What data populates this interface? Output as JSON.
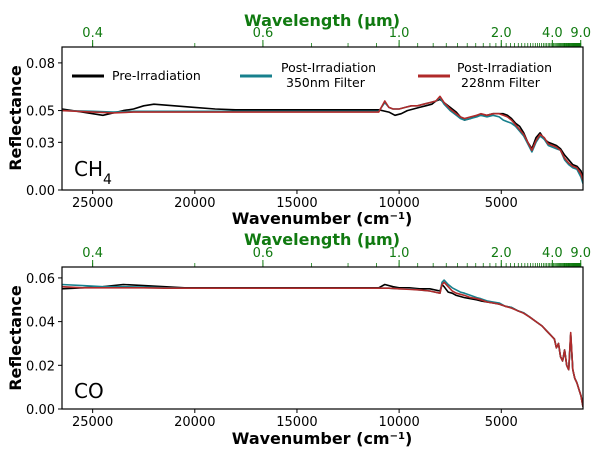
{
  "colors": {
    "pre": "#000000",
    "f350": "#17808d",
    "f228": "#b02a2a",
    "top_axis": "#107a10",
    "frame": "#000000"
  },
  "legend": {
    "pre": "Pre-Irradiation",
    "f350_l1": "Post-Irradiation",
    "f350_l2": "350nm Filter",
    "f228_l1": "Post-Irradiation",
    "f228_l2": "228nm Filter"
  },
  "chart_data": [
    {
      "type": "line",
      "panel_label": "CH",
      "panel_label_sub": "4",
      "xlabel": "Wavenumber (cm",
      "xlabel_sup": "−1",
      "xlabel_end": ")",
      "ylabel": "Reflectance",
      "top_xlabel": "Wavelength (μm)",
      "xlim": [
        26500,
        1000
      ],
      "ylim": [
        0.0,
        0.09
      ],
      "x_ticks": [
        25000,
        20000,
        15000,
        10000,
        5000
      ],
      "x_tick_labels": [
        "25000",
        "20000",
        "15000",
        "10000",
        "5000"
      ],
      "y_ticks": [
        0.0,
        0.03,
        0.05,
        0.08
      ],
      "y_tick_labels": [
        "0.00",
        "0.03",
        "0.05",
        "0.08"
      ],
      "top_ticks_um": [
        0.4,
        0.6,
        1.0,
        2.0,
        4.0,
        9.0
      ],
      "top_tick_labels": [
        "0.4",
        "0.6",
        "1.0",
        "2.0",
        "4.0",
        "9.0"
      ],
      "grid": false,
      "legend_position": "top",
      "series": [
        {
          "key": "pre",
          "name": "Pre-Irradiation",
          "x": [
            26500,
            25500,
            24500,
            23500,
            23000,
            22500,
            22000,
            21000,
            20000,
            19000,
            18000,
            17000,
            16000,
            15000,
            14000,
            13000,
            12000,
            11000,
            10500,
            10200,
            9900,
            9600,
            9300,
            9000,
            8700,
            8400,
            8200,
            8000,
            7800,
            7500,
            7200,
            7000,
            6800,
            6500,
            6200,
            6000,
            5700,
            5400,
            5100,
            4900,
            4700,
            4500,
            4300,
            4100,
            3900,
            3700,
            3500,
            3300,
            3100,
            2900,
            2700,
            2500,
            2300,
            2100,
            1900,
            1700,
            1500,
            1300,
            1100,
            1000
          ],
          "y": [
            0.051,
            0.049,
            0.047,
            0.05,
            0.051,
            0.053,
            0.054,
            0.053,
            0.052,
            0.051,
            0.0505,
            0.0505,
            0.0505,
            0.0505,
            0.0505,
            0.0505,
            0.0505,
            0.0505,
            0.049,
            0.047,
            0.048,
            0.05,
            0.051,
            0.052,
            0.053,
            0.054,
            0.056,
            0.057,
            0.055,
            0.052,
            0.049,
            0.046,
            0.044,
            0.045,
            0.047,
            0.047,
            0.047,
            0.048,
            0.048,
            0.048,
            0.047,
            0.045,
            0.042,
            0.04,
            0.036,
            0.03,
            0.026,
            0.033,
            0.036,
            0.032,
            0.03,
            0.029,
            0.028,
            0.026,
            0.022,
            0.019,
            0.016,
            0.015,
            0.012,
            0.008
          ]
        },
        {
          "key": "f350",
          "name": "Post-Irradiation 350nm Filter",
          "x": [
            26500,
            25000,
            24000,
            23000,
            22000,
            21000,
            20000,
            19000,
            18000,
            17000,
            16000,
            15000,
            14000,
            13000,
            12000,
            11000,
            10700,
            10500,
            10300,
            10000,
            9700,
            9400,
            9100,
            8800,
            8500,
            8200,
            8000,
            7800,
            7500,
            7200,
            7000,
            6800,
            6500,
            6200,
            6000,
            5700,
            5400,
            5100,
            4900,
            4700,
            4500,
            4300,
            4100,
            3900,
            3700,
            3500,
            3300,
            3100,
            2900,
            2700,
            2500,
            2300,
            2100,
            1900,
            1700,
            1500,
            1300,
            1100,
            1000
          ],
          "y": [
            0.05,
            0.0495,
            0.049,
            0.0495,
            0.0495,
            0.0495,
            0.0495,
            0.0495,
            0.0495,
            0.0495,
            0.0495,
            0.0495,
            0.0495,
            0.0495,
            0.0495,
            0.0495,
            0.055,
            0.052,
            0.051,
            0.051,
            0.052,
            0.053,
            0.053,
            0.054,
            0.055,
            0.056,
            0.058,
            0.054,
            0.05,
            0.047,
            0.045,
            0.044,
            0.045,
            0.046,
            0.047,
            0.046,
            0.047,
            0.046,
            0.044,
            0.043,
            0.042,
            0.04,
            0.037,
            0.034,
            0.029,
            0.024,
            0.03,
            0.034,
            0.032,
            0.028,
            0.027,
            0.026,
            0.025,
            0.019,
            0.016,
            0.014,
            0.013,
            0.008,
            0.004
          ]
        },
        {
          "key": "f228",
          "name": "Post-Irradiation 228nm Filter",
          "x": [
            26500,
            25000,
            24000,
            23000,
            22000,
            21000,
            20000,
            19000,
            18000,
            17000,
            16000,
            15000,
            14000,
            13000,
            12000,
            11000,
            10700,
            10500,
            10300,
            10000,
            9700,
            9400,
            9100,
            8800,
            8500,
            8200,
            8000,
            7800,
            7500,
            7200,
            7000,
            6800,
            6500,
            6200,
            6000,
            5700,
            5400,
            5100,
            4900,
            4700,
            4500,
            4300,
            4100,
            3900,
            3700,
            3500,
            3300,
            3100,
            2900,
            2700,
            2500,
            2300,
            2100,
            1900,
            1700,
            1500,
            1300,
            1100,
            1000
          ],
          "y": [
            0.05,
            0.049,
            0.0485,
            0.049,
            0.049,
            0.049,
            0.049,
            0.049,
            0.049,
            0.049,
            0.049,
            0.049,
            0.049,
            0.049,
            0.049,
            0.049,
            0.056,
            0.052,
            0.051,
            0.051,
            0.052,
            0.053,
            0.053,
            0.054,
            0.055,
            0.056,
            0.059,
            0.055,
            0.051,
            0.048,
            0.046,
            0.045,
            0.046,
            0.047,
            0.048,
            0.047,
            0.048,
            0.048,
            0.047,
            0.046,
            0.044,
            0.041,
            0.038,
            0.035,
            0.03,
            0.025,
            0.031,
            0.035,
            0.033,
            0.029,
            0.028,
            0.027,
            0.025,
            0.02,
            0.017,
            0.015,
            0.014,
            0.01,
            0.006
          ]
        }
      ]
    },
    {
      "type": "line",
      "panel_label": "CO",
      "panel_label_sub": "",
      "xlabel": "Wavenumber (cm",
      "xlabel_sup": "−1",
      "xlabel_end": ")",
      "ylabel": "Reflectance",
      "top_xlabel": "Wavelength (μm)",
      "xlim": [
        26500,
        1000
      ],
      "ylim": [
        0.0,
        0.065
      ],
      "x_ticks": [
        25000,
        20000,
        15000,
        10000,
        5000
      ],
      "x_tick_labels": [
        "25000",
        "20000",
        "15000",
        "10000",
        "5000"
      ],
      "y_ticks": [
        0.0,
        0.02,
        0.04,
        0.06
      ],
      "y_tick_labels": [
        "0.00",
        "0.02",
        "0.04",
        "0.06"
      ],
      "top_ticks_um": [
        0.4,
        0.6,
        1.0,
        2.0,
        4.0,
        9.0
      ],
      "top_tick_labels": [
        "0.4",
        "0.6",
        "1.0",
        "2.0",
        "4.0",
        "9.0"
      ],
      "grid": false,
      "series": [
        {
          "key": "pre",
          "name": "Pre-Irradiation",
          "x": [
            26500,
            25500,
            24500,
            23500,
            22500,
            21500,
            20500,
            19000,
            17000,
            15000,
            13000,
            11000,
            10700,
            10300,
            10000,
            9500,
            9000,
            8500,
            8000,
            7900,
            7800,
            7600,
            7400,
            7200,
            7000,
            6800,
            6500,
            6200,
            6000,
            5700,
            5400,
            5100,
            4800,
            4500,
            4200,
            3900,
            3600,
            3300,
            3000,
            2800,
            2600,
            2400,
            2300,
            2200,
            2100,
            2000,
            1900,
            1800,
            1700,
            1600,
            1500,
            1400,
            1300,
            1200,
            1100,
            1000
          ],
          "y": [
            0.055,
            0.0555,
            0.056,
            0.057,
            0.0565,
            0.056,
            0.0555,
            0.0555,
            0.0555,
            0.0555,
            0.0555,
            0.0555,
            0.057,
            0.056,
            0.0555,
            0.0555,
            0.055,
            0.055,
            0.054,
            0.057,
            0.056,
            0.0535,
            0.053,
            0.052,
            0.0515,
            0.051,
            0.0505,
            0.05,
            0.0495,
            0.049,
            0.0485,
            0.048,
            0.047,
            0.0465,
            0.045,
            0.044,
            0.042,
            0.04,
            0.038,
            0.036,
            0.034,
            0.032,
            0.028,
            0.03,
            0.024,
            0.022,
            0.027,
            0.02,
            0.018,
            0.034,
            0.018,
            0.014,
            0.012,
            0.009,
            0.006,
            0.001
          ]
        },
        {
          "key": "f350",
          "name": "Post-Irradiation 350nm Filter",
          "x": [
            26500,
            25500,
            24500,
            23500,
            22500,
            21500,
            20500,
            19000,
            17000,
            15000,
            13000,
            11000,
            10500,
            10000,
            9500,
            9000,
            8500,
            8000,
            7900,
            7800,
            7600,
            7400,
            7200,
            7000,
            6800,
            6500,
            6200,
            6000,
            5700,
            5400,
            5100,
            4800,
            4500,
            4200,
            3900,
            3600,
            3300,
            3000,
            2800,
            2600,
            2400,
            2300,
            2200,
            2100,
            2000,
            1900,
            1800,
            1700,
            1600,
            1500,
            1400,
            1300,
            1200,
            1100,
            1000
          ],
          "y": [
            0.057,
            0.0565,
            0.056,
            0.056,
            0.0558,
            0.0555,
            0.0553,
            0.0553,
            0.0553,
            0.0553,
            0.0553,
            0.0553,
            0.0553,
            0.055,
            0.055,
            0.0545,
            0.054,
            0.053,
            0.058,
            0.059,
            0.057,
            0.0555,
            0.0545,
            0.0535,
            0.053,
            0.052,
            0.051,
            0.0505,
            0.0495,
            0.049,
            0.0485,
            0.047,
            0.0465,
            0.045,
            0.044,
            0.042,
            0.04,
            0.038,
            0.036,
            0.034,
            0.032,
            0.028,
            0.03,
            0.024,
            0.022,
            0.027,
            0.02,
            0.018,
            0.034,
            0.018,
            0.014,
            0.012,
            0.009,
            0.006,
            0.001
          ]
        },
        {
          "key": "f228",
          "name": "Post-Irradiation 228nm Filter",
          "x": [
            26500,
            25500,
            24500,
            23500,
            22500,
            21500,
            20500,
            19000,
            17000,
            15000,
            13000,
            11000,
            10500,
            10000,
            9500,
            9000,
            8500,
            8000,
            7900,
            7800,
            7600,
            7400,
            7200,
            7000,
            6800,
            6500,
            6200,
            6000,
            5700,
            5400,
            5100,
            4800,
            4500,
            4200,
            3900,
            3600,
            3300,
            3000,
            2800,
            2600,
            2400,
            2300,
            2200,
            2100,
            2000,
            1900,
            1800,
            1700,
            1600,
            1500,
            1400,
            1300,
            1200,
            1100,
            1000
          ],
          "y": [
            0.056,
            0.0555,
            0.0555,
            0.0555,
            0.0555,
            0.0553,
            0.0553,
            0.0553,
            0.0553,
            0.0553,
            0.0553,
            0.0553,
            0.0553,
            0.055,
            0.0548,
            0.0545,
            0.054,
            0.053,
            0.057,
            0.058,
            0.056,
            0.054,
            0.053,
            0.0525,
            0.052,
            0.051,
            0.0505,
            0.05,
            0.049,
            0.0485,
            0.048,
            0.047,
            0.0462,
            0.045,
            0.0438,
            0.042,
            0.04,
            0.038,
            0.036,
            0.034,
            0.032,
            0.028,
            0.03,
            0.024,
            0.022,
            0.027,
            0.02,
            0.018,
            0.035,
            0.018,
            0.014,
            0.012,
            0.009,
            0.006,
            0.001
          ]
        }
      ]
    }
  ]
}
